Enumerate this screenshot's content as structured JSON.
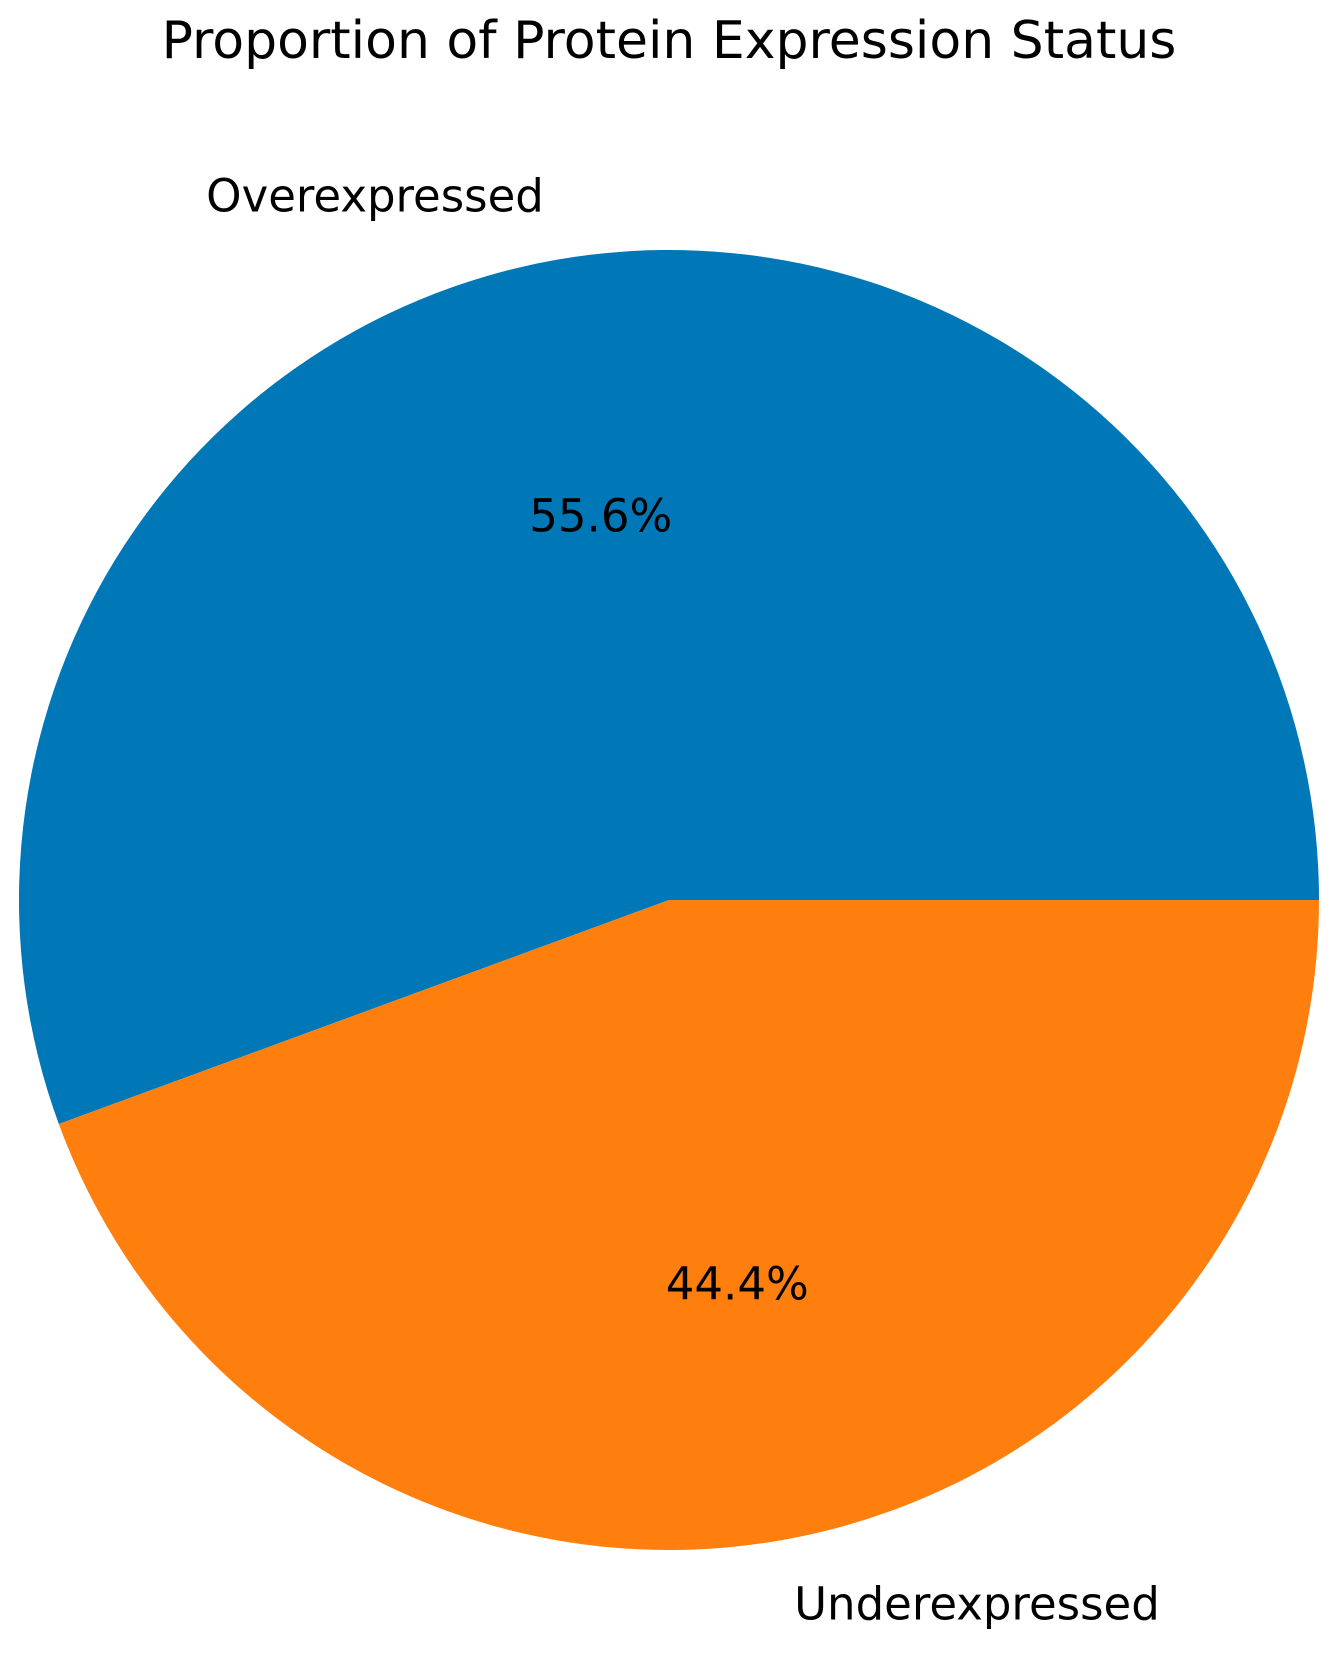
{
  "chart_data": {
    "type": "pie",
    "title": "Proportion of Protein Expression Status",
    "slices": [
      {
        "label": "Overexpressed",
        "value": 55.6,
        "percent_label": "55.6%",
        "color": "#0077b6"
      },
      {
        "label": "Underexpressed",
        "value": 44.4,
        "percent_label": "44.4%",
        "color": "#ff7f0e"
      }
    ],
    "legend": "none"
  }
}
